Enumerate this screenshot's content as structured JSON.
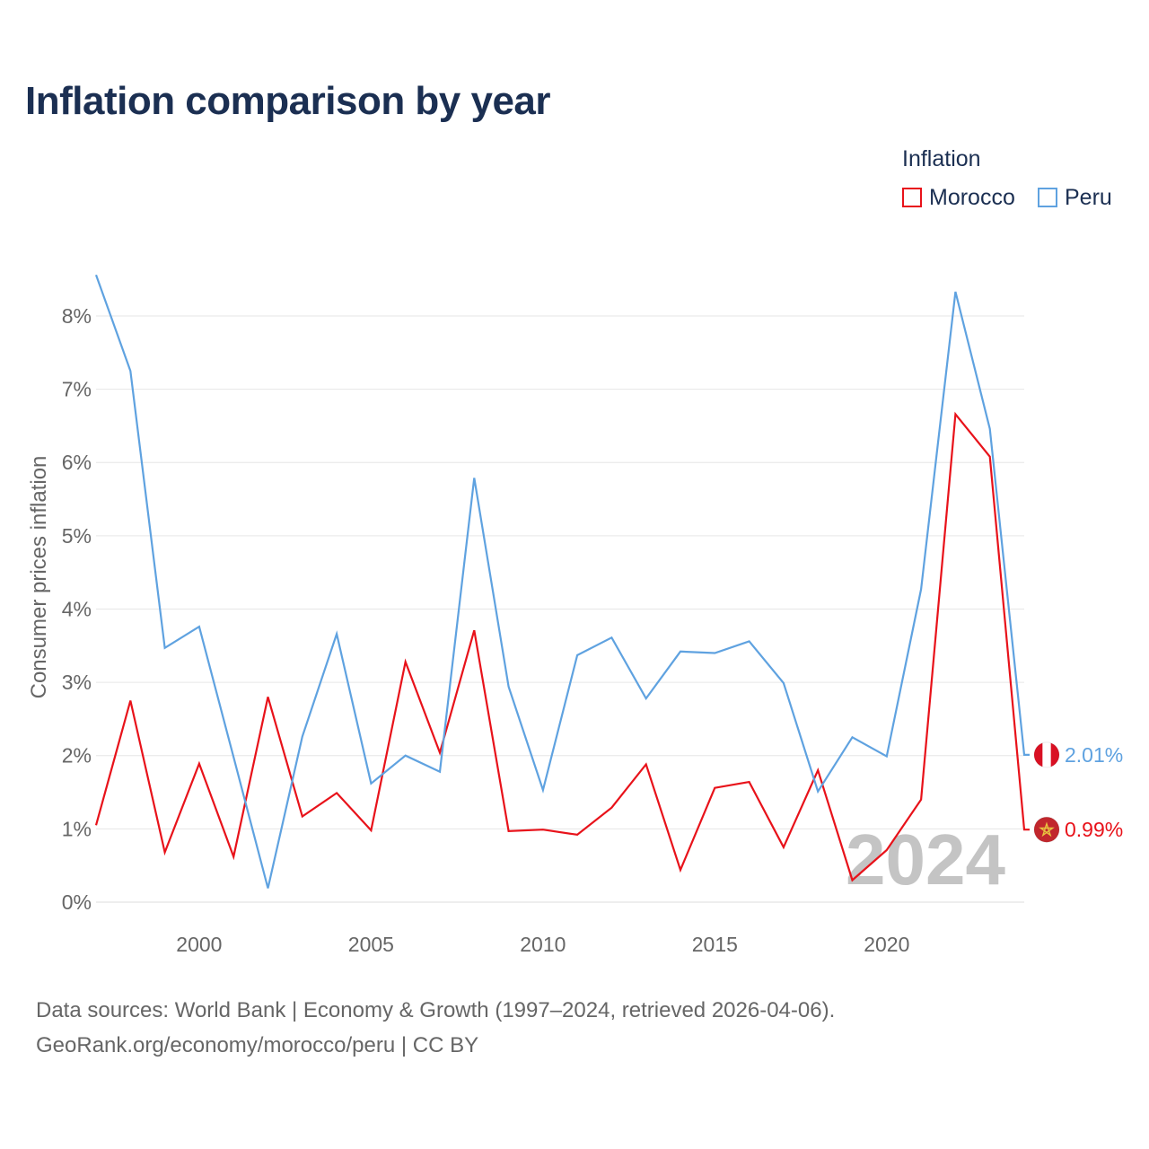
{
  "title": "Inflation comparison by year",
  "legend": {
    "title": "Inflation",
    "items": [
      {
        "name": "Morocco",
        "color": "#e8121a"
      },
      {
        "name": "Peru",
        "color": "#5fa2e0"
      }
    ]
  },
  "footer": {
    "line1": "Data sources: World Bank | Economy & Growth (1997–2024, retrieved 2026-04-06).",
    "line2": "GeoRank.org/economy/morocco/peru | CC BY"
  },
  "colors": {
    "morocco": "#e8121a",
    "peru": "#5fa2e0",
    "grid": "#e6e6e6",
    "axis_text": "#666666",
    "year_watermark": "#c4c4c4"
  },
  "chart_data": {
    "type": "line",
    "title": "Inflation comparison by year",
    "xlabel": "",
    "ylabel": "Consumer prices inflation",
    "x": [
      1997,
      1998,
      1999,
      2000,
      2001,
      2002,
      2003,
      2004,
      2005,
      2006,
      2007,
      2008,
      2009,
      2010,
      2011,
      2012,
      2013,
      2014,
      2015,
      2016,
      2017,
      2018,
      2019,
      2020,
      2021,
      2022,
      2023,
      2024
    ],
    "xlim": [
      1997,
      2024
    ],
    "ylim": [
      0,
      8.6
    ],
    "x_ticks": [
      2000,
      2005,
      2010,
      2015,
      2020
    ],
    "y_ticks": [
      0,
      1,
      2,
      3,
      4,
      5,
      6,
      7,
      8
    ],
    "y_tick_labels": [
      "0%",
      "1%",
      "2%",
      "3%",
      "4%",
      "5%",
      "6%",
      "7%",
      "8%"
    ],
    "grid": true,
    "legend_position": "top-right",
    "year_label": "2024",
    "series": [
      {
        "name": "Morocco",
        "color": "#e8121a",
        "values": [
          1.05,
          2.75,
          0.68,
          1.89,
          0.62,
          2.8,
          1.17,
          1.49,
          0.98,
          3.28,
          2.04,
          3.71,
          0.97,
          0.99,
          0.92,
          1.29,
          1.88,
          0.44,
          1.56,
          1.64,
          0.75,
          1.8,
          0.3,
          0.71,
          1.4,
          6.66,
          6.08,
          0.99
        ],
        "end_label": "0.99%",
        "flag": "morocco"
      },
      {
        "name": "Peru",
        "color": "#5fa2e0",
        "values": [
          8.56,
          7.25,
          3.47,
          3.76,
          1.98,
          0.19,
          2.26,
          3.66,
          1.62,
          2.0,
          1.78,
          5.79,
          2.94,
          1.53,
          3.37,
          3.61,
          2.78,
          3.42,
          3.4,
          3.56,
          2.99,
          1.51,
          2.25,
          1.99,
          4.27,
          8.33,
          6.46,
          2.01
        ],
        "end_label": "2.01%",
        "flag": "peru"
      }
    ]
  }
}
